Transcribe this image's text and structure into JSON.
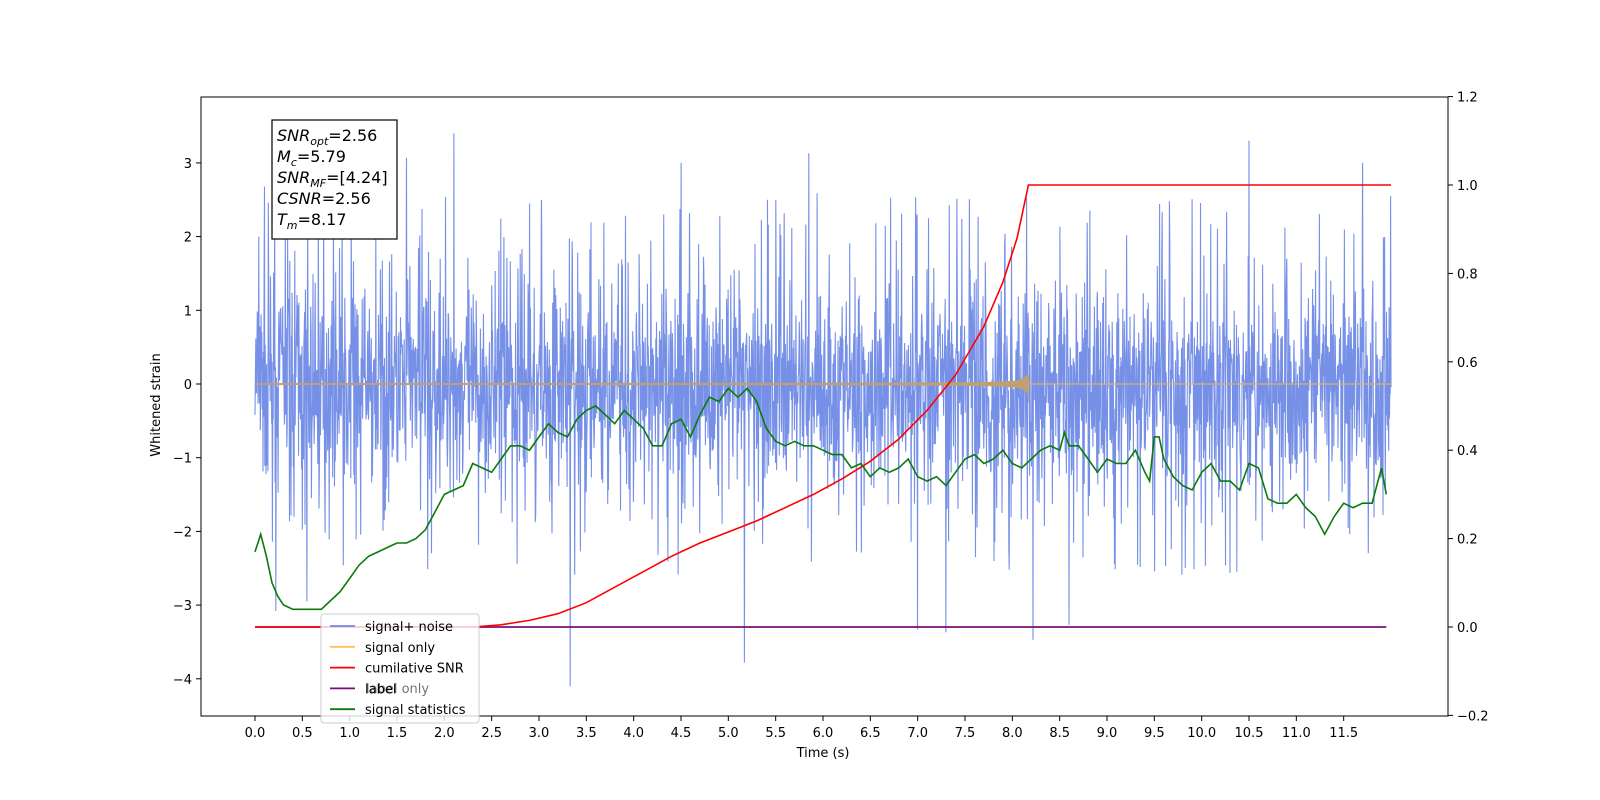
{
  "chart_data": {
    "type": "line",
    "xlabel": "Time (s)",
    "ylabel": "Whitened strain",
    "xlim": [
      -0.6,
      12.6
    ],
    "ylim": [
      -4.5,
      3.9
    ],
    "y2lim": [
      -0.2,
      1.2
    ],
    "x_ticks": [
      "0.0",
      "0.5",
      "1.0",
      "1.5",
      "2.0",
      "2.5",
      "3.0",
      "3.5",
      "4.0",
      "4.5",
      "5.0",
      "5.5",
      "6.0",
      "6.5",
      "7.0",
      "7.5",
      "8.0",
      "8.5",
      "9.0",
      "9.5",
      "10.0",
      "10.5",
      "11.0",
      "11.5"
    ],
    "y_ticks": [
      "−4",
      "−3",
      "−2",
      "−1",
      "0",
      "1",
      "2",
      "3"
    ],
    "y2_ticks": [
      "−0.2",
      "0.0",
      "0.2",
      "0.4",
      "0.6",
      "0.8",
      "1.0",
      "1.2"
    ],
    "annotation": [
      {
        "base": "SNR",
        "sub": "opt",
        "value": "=2.56"
      },
      {
        "base": "M",
        "sub": "c",
        "value": "=5.79"
      },
      {
        "base": "SNR",
        "sub": "MF",
        "value": "=[4.24]"
      },
      {
        "base": "CSNR",
        "sub": "",
        "value": "=2.56"
      },
      {
        "base": "T",
        "sub": "m",
        "value": "=8.17"
      }
    ],
    "legend": {
      "placement": "lower-left",
      "entries": [
        {
          "label": "signal+ noise",
          "color": "#6f8ae6"
        },
        {
          "label": "signal only",
          "color": "#ffbf5e"
        },
        {
          "label": "cumilative SNR",
          "color": "#ff0000"
        },
        {
          "label": "label",
          "color": "#7b0d7b"
        },
        {
          "label": "signal statistics",
          "color": "#0b7a0b"
        }
      ],
      "hidden_text": "label only"
    },
    "series": [
      {
        "name": "signal+ noise",
        "axis": "left",
        "color": "#6f8ae6",
        "x_start": 0.0,
        "x_end": 12.0,
        "typical_range": [
          -1.9,
          1.6
        ],
        "extremes": [
          [
            0.04,
            2.0
          ],
          [
            0.1,
            2.68
          ],
          [
            0.22,
            -3.08
          ],
          [
            0.55,
            -2.95
          ],
          [
            1.6,
            3.07
          ],
          [
            2.1,
            3.4
          ],
          [
            3.33,
            -4.1
          ],
          [
            4.5,
            3.0
          ],
          [
            5.17,
            -3.78
          ],
          [
            5.85,
            3.13
          ],
          [
            7.0,
            -3.33
          ],
          [
            7.3,
            -3.37
          ],
          [
            8.22,
            -3.47
          ],
          [
            8.6,
            -3.27
          ],
          [
            10.5,
            3.3
          ],
          [
            11.7,
            3.0
          ]
        ]
      },
      {
        "name": "signal only",
        "axis": "left",
        "color": "#ffbf5e",
        "x_start": 0.0,
        "x_end": 12.0,
        "merger_time": 8.17,
        "peak_amplitude": 0.25
      },
      {
        "name": "cumilative SNR",
        "axis": "right",
        "x": [
          0.0,
          2.3,
          2.6,
          2.9,
          3.2,
          3.5,
          3.8,
          4.1,
          4.4,
          4.7,
          5.0,
          5.3,
          5.6,
          5.9,
          6.2,
          6.5,
          6.8,
          7.1,
          7.4,
          7.7,
          7.9,
          8.05,
          8.12,
          8.17,
          12.0
        ],
        "y": [
          0.0,
          0.0,
          0.005,
          0.015,
          0.03,
          0.055,
          0.09,
          0.125,
          0.16,
          0.19,
          0.215,
          0.24,
          0.27,
          0.3,
          0.335,
          0.375,
          0.425,
          0.49,
          0.57,
          0.68,
          0.78,
          0.88,
          0.95,
          1.0,
          1.0
        ]
      },
      {
        "name": "label",
        "axis": "right",
        "x": [
          0.0,
          11.95
        ],
        "y": [
          0.0,
          0.0
        ]
      },
      {
        "name": "signal statistics",
        "axis": "right",
        "x": [
          0.0,
          0.06,
          0.12,
          0.18,
          0.24,
          0.3,
          0.4,
          0.55,
          0.7,
          0.8,
          0.9,
          1.0,
          1.1,
          1.2,
          1.3,
          1.4,
          1.5,
          1.6,
          1.7,
          1.8,
          1.9,
          2.0,
          2.1,
          2.2,
          2.3,
          2.4,
          2.5,
          2.6,
          2.7,
          2.8,
          2.9,
          3.0,
          3.1,
          3.2,
          3.3,
          3.4,
          3.5,
          3.6,
          3.7,
          3.8,
          3.9,
          4.0,
          4.1,
          4.2,
          4.3,
          4.4,
          4.5,
          4.6,
          4.7,
          4.8,
          4.9,
          5.0,
          5.1,
          5.2,
          5.3,
          5.4,
          5.5,
          5.6,
          5.7,
          5.8,
          5.9,
          6.0,
          6.1,
          6.2,
          6.3,
          6.4,
          6.5,
          6.6,
          6.7,
          6.8,
          6.9,
          7.0,
          7.1,
          7.2,
          7.3,
          7.4,
          7.5,
          7.6,
          7.7,
          7.8,
          7.9,
          8.0,
          8.1,
          8.2,
          8.3,
          8.4,
          8.5,
          8.55,
          8.6,
          8.7,
          8.8,
          8.9,
          9.0,
          9.1,
          9.2,
          9.3,
          9.4,
          9.45,
          9.5,
          9.55,
          9.6,
          9.7,
          9.8,
          9.9,
          10.0,
          10.1,
          10.2,
          10.3,
          10.4,
          10.5,
          10.6,
          10.7,
          10.8,
          10.9,
          11.0,
          11.1,
          11.2,
          11.3,
          11.4,
          11.5,
          11.6,
          11.7,
          11.8,
          11.9,
          11.95
        ],
        "y": [
          0.17,
          0.21,
          0.16,
          0.1,
          0.07,
          0.05,
          0.04,
          0.04,
          0.04,
          0.06,
          0.08,
          0.11,
          0.14,
          0.16,
          0.17,
          0.18,
          0.19,
          0.19,
          0.2,
          0.22,
          0.26,
          0.3,
          0.31,
          0.32,
          0.37,
          0.36,
          0.35,
          0.38,
          0.41,
          0.41,
          0.4,
          0.43,
          0.46,
          0.44,
          0.43,
          0.47,
          0.49,
          0.5,
          0.48,
          0.46,
          0.49,
          0.47,
          0.45,
          0.41,
          0.41,
          0.46,
          0.47,
          0.43,
          0.48,
          0.52,
          0.51,
          0.54,
          0.52,
          0.54,
          0.51,
          0.45,
          0.42,
          0.41,
          0.42,
          0.41,
          0.41,
          0.4,
          0.39,
          0.39,
          0.36,
          0.37,
          0.34,
          0.36,
          0.35,
          0.36,
          0.38,
          0.34,
          0.33,
          0.34,
          0.32,
          0.35,
          0.38,
          0.39,
          0.37,
          0.38,
          0.4,
          0.37,
          0.36,
          0.38,
          0.4,
          0.41,
          0.4,
          0.44,
          0.41,
          0.41,
          0.38,
          0.35,
          0.38,
          0.37,
          0.37,
          0.4,
          0.35,
          0.33,
          0.43,
          0.43,
          0.38,
          0.34,
          0.32,
          0.31,
          0.35,
          0.37,
          0.33,
          0.33,
          0.31,
          0.37,
          0.36,
          0.29,
          0.28,
          0.28,
          0.3,
          0.27,
          0.25,
          0.21,
          0.25,
          0.28,
          0.27,
          0.28,
          0.28,
          0.36,
          0.3
        ]
      }
    ]
  }
}
